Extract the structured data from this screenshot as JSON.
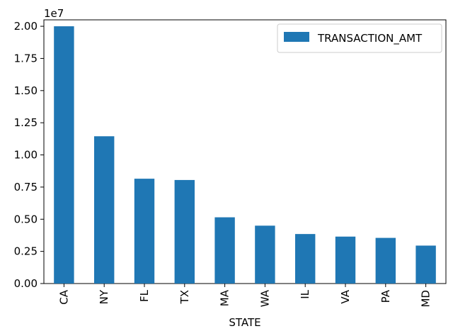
{
  "chart_data": {
    "type": "bar",
    "categories": [
      "CA",
      "NY",
      "FL",
      "TX",
      "MA",
      "WA",
      "IL",
      "VA",
      "PA",
      "MD"
    ],
    "series": [
      {
        "name": "TRANSACTION_AMT",
        "values": [
          20000000,
          11450000,
          8150000,
          8050000,
          5150000,
          4500000,
          3850000,
          3650000,
          3550000,
          2950000
        ]
      }
    ],
    "xlabel": "STATE",
    "ylabel": "",
    "ylim": [
      0,
      20500000
    ],
    "yticks": [
      "0.00",
      "0.25",
      "0.50",
      "0.75",
      "1.00",
      "1.25",
      "1.50",
      "1.75",
      "2.00"
    ],
    "ytick_values": [
      0,
      2500000,
      5000000,
      7500000,
      10000000,
      12500000,
      15000000,
      17500000,
      20000000
    ],
    "y_offset_text": "1e7",
    "legend_position": "upper-right",
    "grid": false,
    "bar_color": "#1f77b4"
  }
}
